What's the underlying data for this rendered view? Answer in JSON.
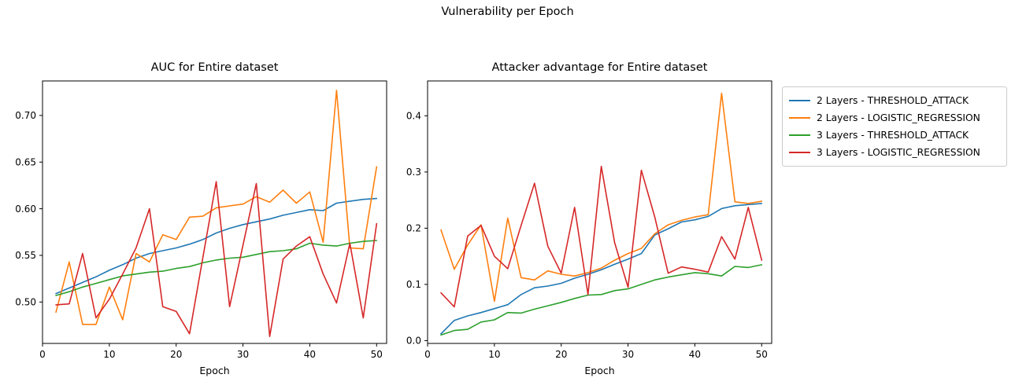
{
  "figure": {
    "title": "Vulnerability per Epoch",
    "background": "#ffffff"
  },
  "colors": {
    "blue": "#1f77b4",
    "orange": "#ff7f0e",
    "green": "#2ca02c",
    "red": "#d62728",
    "axis": "#000000",
    "legend_border": "#cbcbcb",
    "text": "#000000"
  },
  "legend": {
    "position": "outside upper right",
    "entries": [
      {
        "label": "2 Layers - THRESHOLD_ATTACK",
        "color": "#1f77b4"
      },
      {
        "label": "2 Layers - LOGISTIC_REGRESSION",
        "color": "#ff7f0e"
      },
      {
        "label": "3 Layers - THRESHOLD_ATTACK",
        "color": "#2ca02c"
      },
      {
        "label": "3 Layers - LOGISTIC_REGRESSION",
        "color": "#d62728"
      }
    ]
  },
  "chart_data": [
    {
      "type": "line",
      "title": "AUC for Entire dataset",
      "xlabel": "Epoch",
      "ylabel": "",
      "grid": false,
      "x": [
        2,
        4,
        6,
        8,
        10,
        12,
        14,
        16,
        18,
        20,
        22,
        24,
        26,
        28,
        30,
        32,
        34,
        36,
        38,
        40,
        42,
        44,
        46,
        48,
        50
      ],
      "xlim": [
        0,
        51.5
      ],
      "ylim": [
        0.4556,
        0.737
      ],
      "xticks": [
        0,
        10,
        20,
        30,
        40,
        50
      ],
      "xtick_labels": [
        "0",
        "10",
        "20",
        "30",
        "40",
        "50"
      ],
      "yticks": [
        0.5,
        0.55,
        0.6,
        0.65,
        0.7
      ],
      "ytick_labels": [
        "0.50",
        "0.55",
        "0.60",
        "0.65",
        "0.70"
      ],
      "series": [
        {
          "name": "2 Layers - THRESHOLD_ATTACK",
          "color": "#1f77b4",
          "values": [
            0.509,
            0.515,
            0.521,
            0.527,
            0.534,
            0.54,
            0.547,
            0.552,
            0.555,
            0.558,
            0.562,
            0.567,
            0.574,
            0.579,
            0.583,
            0.586,
            0.589,
            0.593,
            0.596,
            0.599,
            0.598,
            0.606,
            0.608,
            0.61,
            0.611
          ]
        },
        {
          "name": "2 Layers - LOGISTIC_REGRESSION",
          "color": "#ff7f0e",
          "values": [
            0.489,
            0.543,
            0.476,
            0.476,
            0.516,
            0.481,
            0.552,
            0.543,
            0.572,
            0.567,
            0.591,
            0.592,
            0.601,
            0.603,
            0.605,
            0.613,
            0.607,
            0.62,
            0.606,
            0.618,
            0.564,
            0.727,
            0.558,
            0.557,
            0.645
          ]
        },
        {
          "name": "3 Layers - THRESHOLD_ATTACK",
          "color": "#2ca02c",
          "values": [
            0.507,
            0.511,
            0.516,
            0.52,
            0.524,
            0.528,
            0.53,
            0.532,
            0.533,
            0.536,
            0.538,
            0.542,
            0.545,
            0.547,
            0.548,
            0.551,
            0.554,
            0.555,
            0.557,
            0.563,
            0.561,
            0.56,
            0.563,
            0.565,
            0.566
          ]
        },
        {
          "name": "3 Layers - LOGISTIC_REGRESSION",
          "color": "#d62728",
          "values": [
            0.497,
            0.498,
            0.552,
            0.483,
            0.503,
            0.53,
            0.558,
            0.6,
            0.495,
            0.49,
            0.466,
            0.548,
            0.629,
            0.495,
            0.561,
            0.627,
            0.463,
            0.546,
            0.56,
            0.57,
            0.53,
            0.499,
            0.563,
            0.483,
            0.584
          ]
        }
      ]
    },
    {
      "type": "line",
      "title": "Attacker advantage for Entire dataset",
      "xlabel": "Epoch",
      "ylabel": "",
      "grid": false,
      "x": [
        2,
        4,
        6,
        8,
        10,
        12,
        14,
        16,
        18,
        20,
        22,
        24,
        26,
        28,
        30,
        32,
        34,
        36,
        38,
        40,
        42,
        44,
        46,
        48,
        50
      ],
      "xlim": [
        0,
        51.5
      ],
      "ylim": [
        -0.005,
        0.462
      ],
      "xticks": [
        0,
        10,
        20,
        30,
        40,
        50
      ],
      "xtick_labels": [
        "0",
        "10",
        "20",
        "30",
        "40",
        "50"
      ],
      "yticks": [
        0.0,
        0.1,
        0.2,
        0.3,
        0.4
      ],
      "ytick_labels": [
        "0.0",
        "0.1",
        "0.2",
        "0.3",
        "0.4"
      ],
      "series": [
        {
          "name": "2 Layers - THRESHOLD_ATTACK",
          "color": "#1f77b4",
          "values": [
            0.012,
            0.036,
            0.044,
            0.05,
            0.057,
            0.064,
            0.082,
            0.094,
            0.097,
            0.102,
            0.111,
            0.118,
            0.126,
            0.136,
            0.145,
            0.155,
            0.188,
            0.199,
            0.211,
            0.215,
            0.221,
            0.235,
            0.24,
            0.242,
            0.244
          ]
        },
        {
          "name": "2 Layers - LOGISTIC_REGRESSION",
          "color": "#ff7f0e",
          "values": [
            0.197,
            0.127,
            0.17,
            0.206,
            0.07,
            0.218,
            0.112,
            0.108,
            0.124,
            0.118,
            0.115,
            0.121,
            0.129,
            0.143,
            0.155,
            0.164,
            0.19,
            0.206,
            0.214,
            0.22,
            0.224,
            0.44,
            0.247,
            0.244,
            0.248
          ]
        },
        {
          "name": "3 Layers - THRESHOLD_ATTACK",
          "color": "#2ca02c",
          "values": [
            0.01,
            0.018,
            0.02,
            0.033,
            0.037,
            0.05,
            0.049,
            0.056,
            0.062,
            0.068,
            0.075,
            0.081,
            0.082,
            0.089,
            0.092,
            0.1,
            0.108,
            0.113,
            0.117,
            0.121,
            0.119,
            0.115,
            0.132,
            0.13,
            0.135
          ]
        },
        {
          "name": "3 Layers - LOGISTIC_REGRESSION",
          "color": "#d62728",
          "values": [
            0.085,
            0.06,
            0.186,
            0.205,
            0.15,
            0.128,
            0.205,
            0.28,
            0.168,
            0.12,
            0.237,
            0.082,
            0.31,
            0.174,
            0.095,
            0.303,
            0.22,
            0.12,
            0.131,
            0.127,
            0.122,
            0.185,
            0.145,
            0.237,
            0.143
          ]
        }
      ]
    }
  ]
}
